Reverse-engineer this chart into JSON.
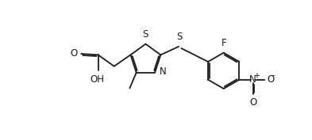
{
  "background_color": "#ffffff",
  "line_color": "#1a1a1a",
  "line_width": 1.3,
  "font_size": 8.5,
  "fig_width": 3.93,
  "fig_height": 1.77,
  "dpi": 100,
  "xlim": [
    -0.5,
    10.5
  ],
  "ylim": [
    0.2,
    5.0
  ]
}
